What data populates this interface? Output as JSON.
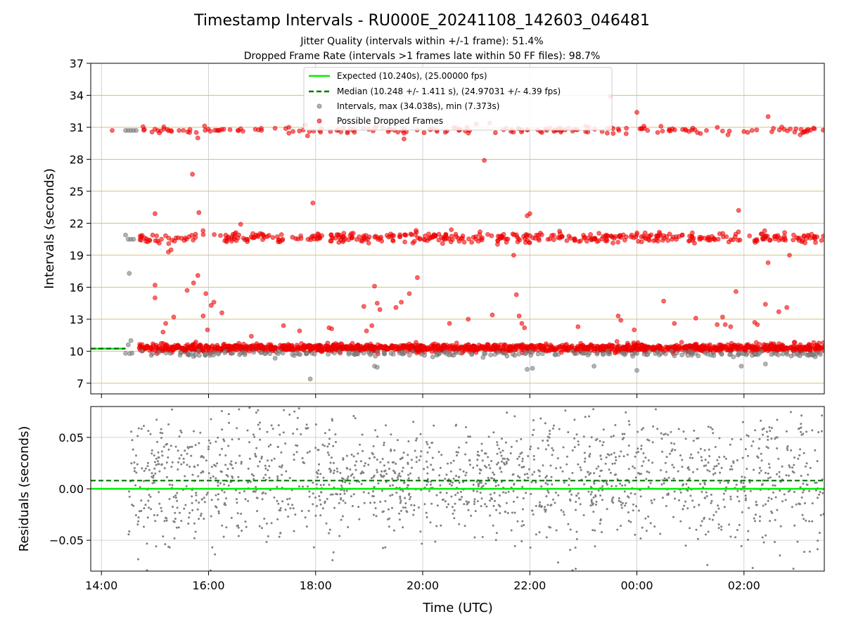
{
  "chart_data": [
    {
      "type": "scatter",
      "title": "Timestamp Intervals - RU000E_20241108_142603_046481",
      "subtitle_lines": [
        "Jitter Quality (intervals within +/-1 frame): 51.4%",
        "Dropped Frame Rate (intervals >1 frames late within 50 FF files): 98.7%"
      ],
      "ylabel": "Intervals (seconds)",
      "ylim": [
        6,
        37
      ],
      "yticks": [
        7,
        10,
        13,
        16,
        19,
        22,
        25,
        28,
        31,
        34,
        37
      ],
      "ytick_labels": [
        "7",
        "10",
        "13",
        "16",
        "19",
        "22",
        "25",
        "28",
        "31",
        "34",
        "37"
      ],
      "xlim_hours": [
        13.8,
        27.5
      ],
      "grid": true,
      "horizontal_grid_color": "#d4c27a",
      "legend_position": "top-center",
      "legend": [
        {
          "label": "Expected (10.240s), (25.00000 fps)",
          "style": "line",
          "color": "#00ee00"
        },
        {
          "label": "Median (10.248 +/- 1.411 s), (24.97031 +/- 4.39 fps)",
          "style": "dashed",
          "color": "#007700"
        },
        {
          "label": "Intervals, max (34.038s), min (7.373s)",
          "style": "marker",
          "color": "#808080"
        },
        {
          "label": "Possible Dropped Frames",
          "style": "marker",
          "color": "#ff0000"
        }
      ],
      "reference_lines": {
        "expected": 10.24,
        "median": 10.248
      },
      "bands": [
        {
          "center": 10.3,
          "spread": 0.18,
          "start": 14.7,
          "end": 27.5,
          "count": 1500,
          "color": "#ff0000"
        },
        {
          "center": 9.75,
          "spread": 0.12,
          "start": 14.5,
          "end": 27.5,
          "count": 220,
          "color": "#808080"
        },
        {
          "center": 20.65,
          "spread": 0.25,
          "start": 14.7,
          "end": 27.5,
          "count": 460,
          "color": "#ff0000"
        },
        {
          "center": 30.75,
          "spread": 0.15,
          "start": 14.7,
          "end": 27.5,
          "count": 170,
          "color": "#ff0000"
        }
      ],
      "series": [
        {
          "name": "Possible Dropped Frames",
          "color": "#ff0000",
          "points": [
            [
              15.0,
              22.9
            ],
            [
              15.0,
              16.2
            ],
            [
              15.0,
              15.0
            ],
            [
              15.15,
              11.8
            ],
            [
              15.2,
              12.6
            ],
            [
              15.25,
              19.3
            ],
            [
              15.3,
              19.5
            ],
            [
              15.35,
              13.2
            ],
            [
              15.6,
              15.7
            ],
            [
              15.7,
              26.6
            ],
            [
              15.72,
              16.4
            ],
            [
              15.8,
              17.1
            ],
            [
              15.82,
              23.0
            ],
            [
              15.9,
              13.3
            ],
            [
              15.95,
              15.4
            ],
            [
              15.98,
              12.0
            ],
            [
              16.05,
              14.3
            ],
            [
              16.1,
              14.6
            ],
            [
              16.25,
              13.6
            ],
            [
              16.6,
              21.9
            ],
            [
              16.8,
              11.4
            ],
            [
              17.4,
              12.4
            ],
            [
              17.5,
              31.0
            ],
            [
              17.7,
              11.9
            ],
            [
              17.85,
              30.2
            ],
            [
              17.95,
              23.9
            ],
            [
              18.25,
              12.2
            ],
            [
              18.3,
              12.1
            ],
            [
              18.6,
              30.6
            ],
            [
              18.9,
              14.2
            ],
            [
              18.95,
              11.9
            ],
            [
              19.05,
              12.4
            ],
            [
              19.1,
              16.1
            ],
            [
              19.15,
              14.5
            ],
            [
              19.2,
              13.9
            ],
            [
              19.5,
              14.1
            ],
            [
              19.6,
              14.6
            ],
            [
              19.65,
              29.9
            ],
            [
              19.75,
              15.4
            ],
            [
              19.9,
              16.9
            ],
            [
              20.5,
              12.6
            ],
            [
              20.85,
              13.0
            ],
            [
              21.0,
              31.3
            ],
            [
              21.15,
              27.9
            ],
            [
              21.25,
              31.4
            ],
            [
              21.3,
              13.4
            ],
            [
              21.7,
              19.0
            ],
            [
              21.75,
              15.3
            ],
            [
              21.8,
              13.3
            ],
            [
              21.85,
              12.6
            ],
            [
              21.9,
              12.2
            ],
            [
              21.95,
              22.7
            ],
            [
              22.0,
              22.9
            ],
            [
              22.9,
              12.3
            ],
            [
              23.1,
              31.0
            ],
            [
              23.5,
              33.9
            ],
            [
              23.65,
              13.3
            ],
            [
              23.7,
              12.9
            ],
            [
              23.95,
              12.0
            ],
            [
              24.0,
              32.4
            ],
            [
              24.2,
              30.7
            ],
            [
              24.5,
              14.7
            ],
            [
              24.7,
              12.6
            ],
            [
              24.9,
              30.8
            ],
            [
              25.1,
              13.1
            ],
            [
              25.5,
              12.5
            ],
            [
              25.6,
              13.2
            ],
            [
              25.65,
              12.5
            ],
            [
              25.7,
              30.3
            ],
            [
              25.75,
              12.3
            ],
            [
              25.85,
              15.6
            ],
            [
              25.9,
              23.2
            ],
            [
              26.0,
              30.6
            ],
            [
              26.2,
              12.7
            ],
            [
              26.25,
              12.5
            ],
            [
              26.4,
              14.4
            ],
            [
              26.45,
              32.0
            ],
            [
              26.45,
              18.3
            ],
            [
              26.65,
              13.7
            ],
            [
              26.75,
              30.8
            ],
            [
              26.8,
              14.1
            ],
            [
              26.85,
              19.0
            ],
            [
              27.05,
              30.3
            ],
            [
              27.2,
              30.8
            ],
            [
              14.2,
              30.7
            ],
            [
              15.05,
              30.7
            ],
            [
              15.3,
              30.7
            ],
            [
              15.45,
              30.7
            ],
            [
              15.8,
              30.0
            ],
            [
              16.2,
              30.7
            ],
            [
              16.55,
              30.7
            ],
            [
              19.4,
              30.8
            ],
            [
              20.7,
              30.8
            ],
            [
              21.65,
              30.6
            ],
            [
              22.2,
              30.6
            ],
            [
              22.6,
              30.8
            ],
            [
              23.35,
              30.6
            ],
            [
              23.8,
              30.4
            ],
            [
              24.45,
              31.1
            ],
            [
              24.6,
              30.7
            ],
            [
              25.3,
              30.7
            ],
            [
              26.15,
              30.7
            ],
            [
              26.55,
              30.9
            ],
            [
              27.1,
              30.5
            ]
          ]
        },
        {
          "name": "Intervals, max (34.038s), min (7.373s)",
          "color": "#808080",
          "points": [
            [
              14.45,
              30.7
            ],
            [
              14.5,
              30.7
            ],
            [
              14.55,
              30.7
            ],
            [
              14.6,
              30.7
            ],
            [
              14.65,
              30.7
            ],
            [
              14.45,
              20.9
            ],
            [
              14.5,
              20.5
            ],
            [
              14.55,
              20.5
            ],
            [
              14.6,
              20.5
            ],
            [
              14.52,
              17.3
            ],
            [
              14.55,
              11.0
            ],
            [
              14.5,
              10.6
            ],
            [
              14.45,
              9.8
            ],
            [
              17.9,
              7.4
            ],
            [
              19.1,
              8.6
            ],
            [
              19.15,
              8.5
            ],
            [
              21.95,
              8.3
            ],
            [
              22.05,
              8.4
            ],
            [
              23.2,
              8.6
            ],
            [
              24.0,
              8.2
            ],
            [
              25.95,
              8.6
            ],
            [
              26.4,
              8.8
            ]
          ]
        }
      ]
    },
    {
      "type": "scatter",
      "title": "",
      "ylabel": "Residuals (seconds)",
      "xlabel": "Time (UTC)",
      "ylim": [
        -0.08,
        0.08
      ],
      "yticks": [
        -0.05,
        0.0,
        0.05
      ],
      "ytick_labels": [
        "−0.05",
        "0.00",
        "0.05"
      ],
      "xlim_hours": [
        13.8,
        27.5
      ],
      "xticks_hours": [
        14,
        16,
        18,
        20,
        22,
        24,
        26
      ],
      "xtick_labels": [
        "14:00",
        "16:00",
        "18:00",
        "20:00",
        "22:00",
        "00:00",
        "02:00"
      ],
      "grid": true,
      "reference_lines": {
        "expected": 0.0,
        "median": 0.008
      },
      "residual_distribution": {
        "center": 0.008,
        "spread": 0.035,
        "start": 14.5,
        "end": 27.5,
        "count": 1700,
        "color": "#808080"
      }
    }
  ]
}
